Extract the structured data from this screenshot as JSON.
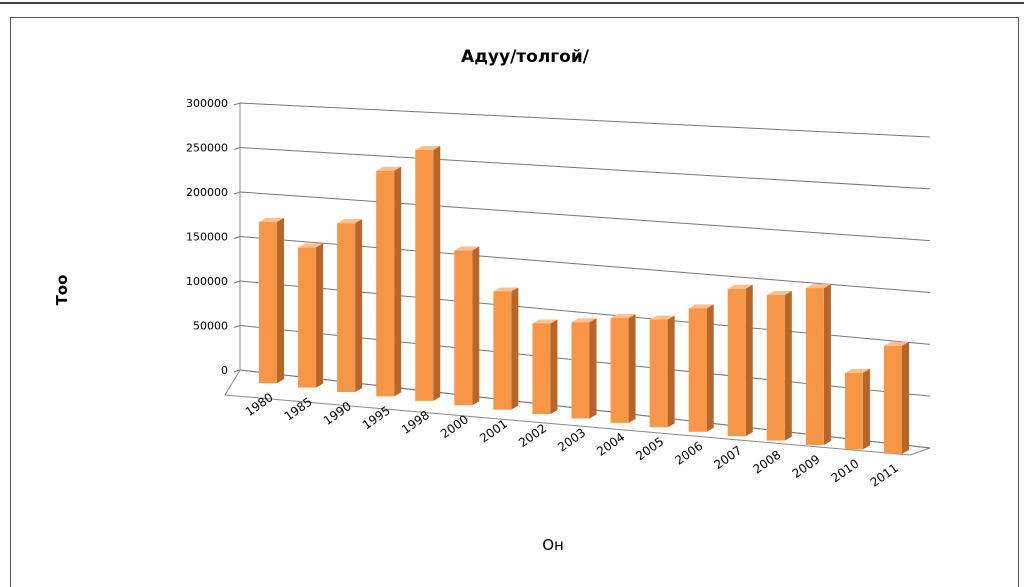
{
  "chart_data": {
    "type": "bar3d",
    "title": "Адуу/толгой/",
    "x_label": "Он",
    "y_label": "Тоо",
    "categories": [
      "1980",
      "1985",
      "1990",
      "1995",
      "1998",
      "2000",
      "2001",
      "2002",
      "2003",
      "2004",
      "2005",
      "2006",
      "2007",
      "2008",
      "2009",
      "2010",
      "2011"
    ],
    "values": [
      180000,
      155000,
      185000,
      245000,
      270000,
      165000,
      125000,
      95000,
      100000,
      108000,
      110000,
      125000,
      148000,
      145000,
      155000,
      75000,
      105000
    ],
    "color": "#f79646",
    "ylim": [
      0,
      300000
    ],
    "yticks": [
      0,
      50000,
      100000,
      150000,
      200000,
      250000,
      300000
    ],
    "grid": true
  }
}
